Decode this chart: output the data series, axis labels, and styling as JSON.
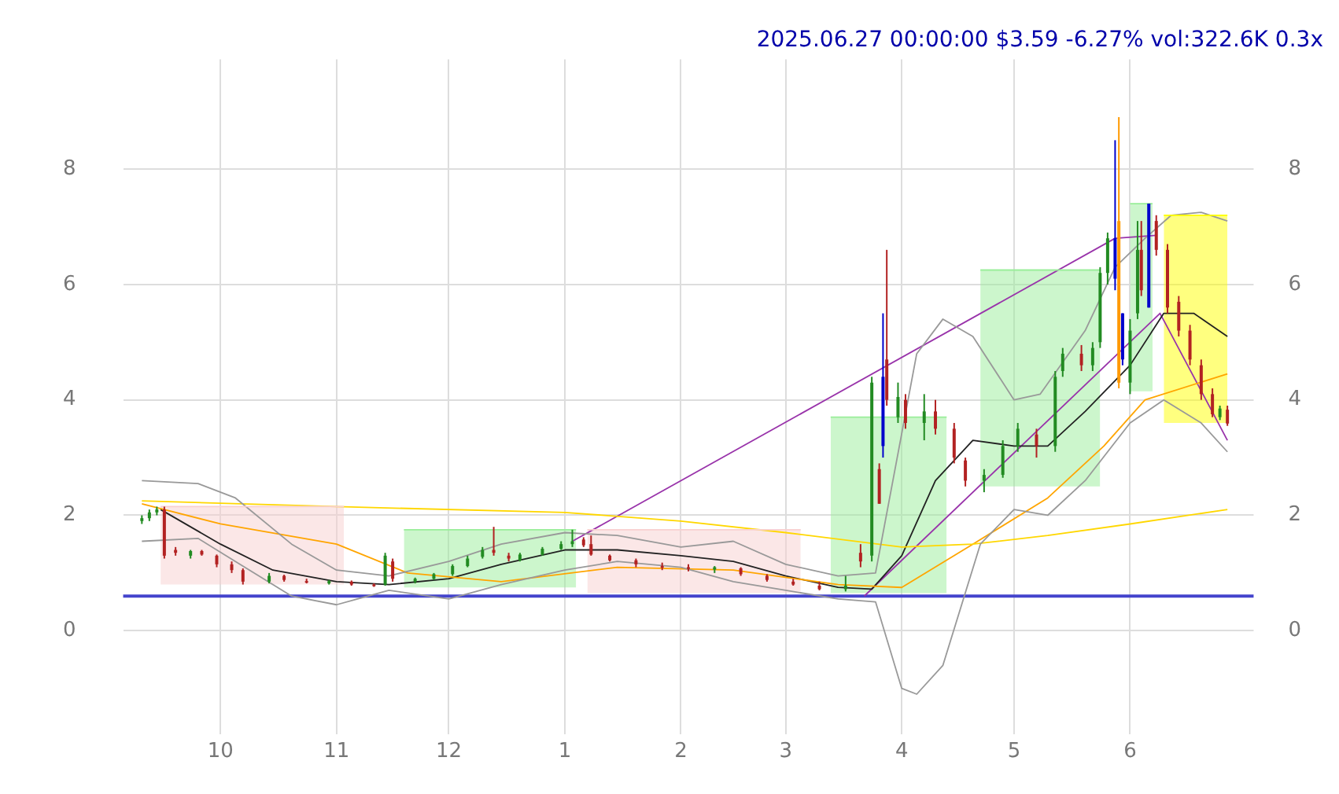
{
  "chart_data": {
    "type": "candlestick",
    "title": "2025.06.27 00:00:00 $3.59 -6.27% vol:322.6K 0.3x",
    "x": [
      "2024-09-10",
      "2024-09-12",
      "2024-09-14",
      "2024-09-16",
      "2024-09-19",
      "2024-09-23",
      "2024-09-26",
      "2024-09-30",
      "2024-10-04",
      "2024-10-07",
      "2024-10-14",
      "2024-10-18",
      "2024-10-24",
      "2024-10-30",
      "2024-11-05",
      "2024-11-11",
      "2024-11-14",
      "2024-11-16",
      "2024-11-22",
      "2024-11-27",
      "2024-12-02",
      "2024-12-06",
      "2024-12-10",
      "2024-12-13",
      "2024-12-17",
      "2024-12-20",
      "2024-12-26",
      "2024-12-31",
      "2025-01-03",
      "2025-01-06",
      "2025-01-08",
      "2025-01-13",
      "2025-01-20",
      "2025-01-27",
      "2025-02-03",
      "2025-02-10",
      "2025-02-17",
      "2025-02-24",
      "2025-03-03",
      "2025-03-10",
      "2025-03-17",
      "2025-03-21",
      "2025-03-24",
      "2025-03-26",
      "2025-03-27",
      "2025-03-28",
      "2025-03-31",
      "2025-04-02",
      "2025-04-07",
      "2025-04-10",
      "2025-04-15",
      "2025-04-18",
      "2025-04-23",
      "2025-04-28",
      "2025-05-02",
      "2025-05-07",
      "2025-05-12",
      "2025-05-14",
      "2025-05-19",
      "2025-05-22",
      "2025-05-24",
      "2025-05-26",
      "2025-05-28",
      "2025-05-29",
      "2025-05-30",
      "2025-06-01",
      "2025-06-03",
      "2025-06-04",
      "2025-06-06",
      "2025-06-08",
      "2025-06-11",
      "2025-06-14",
      "2025-06-17",
      "2025-06-20",
      "2025-06-23",
      "2025-06-25",
      "2025-06-27"
    ],
    "ohlc": [
      [
        1.9,
        2.0,
        1.85,
        1.95
      ],
      [
        1.95,
        2.1,
        1.9,
        2.05
      ],
      [
        2.05,
        2.15,
        2.0,
        2.1
      ],
      [
        2.1,
        2.15,
        1.25,
        1.3
      ],
      [
        1.4,
        1.45,
        1.3,
        1.35
      ],
      [
        1.3,
        1.4,
        1.25,
        1.38
      ],
      [
        1.38,
        1.4,
        1.3,
        1.32
      ],
      [
        1.3,
        1.32,
        1.1,
        1.15
      ],
      [
        1.15,
        1.2,
        1.0,
        1.05
      ],
      [
        1.05,
        1.08,
        0.8,
        0.85
      ],
      [
        0.85,
        1.0,
        0.82,
        0.95
      ],
      [
        0.95,
        0.97,
        0.85,
        0.88
      ],
      [
        0.86,
        0.9,
        0.82,
        0.85
      ],
      [
        0.82,
        0.88,
        0.8,
        0.86
      ],
      [
        0.85,
        0.87,
        0.78,
        0.8
      ],
      [
        0.8,
        0.82,
        0.76,
        0.78
      ],
      [
        0.8,
        1.35,
        0.78,
        1.3
      ],
      [
        1.2,
        1.25,
        0.85,
        0.9
      ],
      [
        0.85,
        0.92,
        0.82,
        0.9
      ],
      [
        0.9,
        1.0,
        0.88,
        0.98
      ],
      [
        0.98,
        1.15,
        0.95,
        1.12
      ],
      [
        1.12,
        1.3,
        1.1,
        1.25
      ],
      [
        1.28,
        1.45,
        1.25,
        1.4
      ],
      [
        1.4,
        1.8,
        1.3,
        1.35
      ],
      [
        1.3,
        1.35,
        1.2,
        1.25
      ],
      [
        1.22,
        1.35,
        1.2,
        1.32
      ],
      [
        1.32,
        1.45,
        1.3,
        1.42
      ],
      [
        1.42,
        1.55,
        1.4,
        1.5
      ],
      [
        1.5,
        1.75,
        1.45,
        1.55
      ],
      [
        1.58,
        1.62,
        1.45,
        1.48
      ],
      [
        1.5,
        1.65,
        1.3,
        1.32
      ],
      [
        1.3,
        1.32,
        1.2,
        1.22
      ],
      [
        1.22,
        1.25,
        1.1,
        1.15
      ],
      [
        1.12,
        1.18,
        1.05,
        1.1
      ],
      [
        1.1,
        1.15,
        1.03,
        1.08
      ],
      [
        1.06,
        1.12,
        1.0,
        1.1
      ],
      [
        1.08,
        1.1,
        0.95,
        0.98
      ],
      [
        0.95,
        0.98,
        0.85,
        0.88
      ],
      [
        0.85,
        0.9,
        0.78,
        0.8
      ],
      [
        0.78,
        0.85,
        0.7,
        0.72
      ],
      [
        0.72,
        0.95,
        0.68,
        0.78
      ],
      [
        1.35,
        1.5,
        1.1,
        1.2
      ],
      [
        1.3,
        4.4,
        1.2,
        4.3
      ],
      [
        2.8,
        2.9,
        2.2,
        2.2
      ],
      [
        3.2,
        5.5,
        3.0,
        4.4
      ],
      [
        4.7,
        6.6,
        3.9,
        4.0
      ],
      [
        3.7,
        4.3,
        3.6,
        4.05
      ],
      [
        4.0,
        4.1,
        3.5,
        3.6
      ],
      [
        3.6,
        4.1,
        3.3,
        3.8
      ],
      [
        3.8,
        4.0,
        3.4,
        3.5
      ],
      [
        3.5,
        3.6,
        2.9,
        3.0
      ],
      [
        2.95,
        3.0,
        2.5,
        2.6
      ],
      [
        2.6,
        2.8,
        2.4,
        2.7
      ],
      [
        2.7,
        3.3,
        2.65,
        3.2
      ],
      [
        3.2,
        3.6,
        3.1,
        3.5
      ],
      [
        3.4,
        3.5,
        3.0,
        3.2
      ],
      [
        3.2,
        4.5,
        3.1,
        4.4
      ],
      [
        4.5,
        4.9,
        4.4,
        4.8
      ],
      [
        4.8,
        4.95,
        4.5,
        4.6
      ],
      [
        4.6,
        5.0,
        4.5,
        4.9
      ],
      [
        5.0,
        6.3,
        4.9,
        6.2
      ],
      [
        6.2,
        6.9,
        6.0,
        6.8
      ],
      [
        6.8,
        8.5,
        5.9,
        6.1
      ],
      [
        7.1,
        8.9,
        4.2,
        4.3
      ],
      [
        5.5,
        5.5,
        4.6,
        4.7
      ],
      [
        4.3,
        5.4,
        4.1,
        5.2
      ],
      [
        5.5,
        7.1,
        5.4,
        6.6
      ],
      [
        6.6,
        7.1,
        5.8,
        5.9
      ],
      [
        7.4,
        7.4,
        5.6,
        5.6
      ],
      [
        7.1,
        7.2,
        6.5,
        6.6
      ],
      [
        6.6,
        6.7,
        5.5,
        5.6
      ],
      [
        5.7,
        5.8,
        5.1,
        5.2
      ],
      [
        5.2,
        5.3,
        4.6,
        4.7
      ],
      [
        4.6,
        4.7,
        4.0,
        4.1
      ],
      [
        4.1,
        4.2,
        3.7,
        3.75
      ],
      [
        3.7,
        3.9,
        3.65,
        3.85
      ],
      [
        3.83,
        3.9,
        3.55,
        3.59
      ]
    ],
    "colors": [
      "#228b22",
      "#228b22",
      "#228b22",
      "#b22222",
      "#b22222",
      "#228b22",
      "#b22222",
      "#b22222",
      "#b22222",
      "#b22222",
      "#228b22",
      "#b22222",
      "#b22222",
      "#228b22",
      "#b22222",
      "#b22222",
      "#228b22",
      "#b22222",
      "#228b22",
      "#228b22",
      "#228b22",
      "#228b22",
      "#228b22",
      "#b22222",
      "#b22222",
      "#228b22",
      "#228b22",
      "#228b22",
      "#228b22",
      "#b22222",
      "#b22222",
      "#b22222",
      "#b22222",
      "#b22222",
      "#b22222",
      "#228b22",
      "#b22222",
      "#b22222",
      "#b22222",
      "#b22222",
      "#228b22",
      "#b22222",
      "#228b22",
      "#b22222",
      "#0000cc",
      "#b22222",
      "#228b22",
      "#b22222",
      "#228b22",
      "#b22222",
      "#b22222",
      "#b22222",
      "#228b22",
      "#228b22",
      "#228b22",
      "#b22222",
      "#228b22",
      "#228b22",
      "#b22222",
      "#228b22",
      "#228b22",
      "#228b22",
      "#0000cc",
      "#ff9900",
      "#0000cc",
      "#228b22",
      "#228b22",
      "#b22222",
      "#0000cc",
      "#b22222",
      "#b22222",
      "#b22222",
      "#b22222",
      "#b22222",
      "#b22222",
      "#228b22",
      "#b22222"
    ],
    "series": [
      {
        "type": "line",
        "color": "#f8d0d0",
        "x": [
          "2024-09-15",
          "2024-11-03"
        ],
        "values": [
          2.15,
          2.15
        ],
        "lower": [
          0.8,
          0.8
        ],
        "upper": [
          2.15,
          2.15
        ]
      },
      {
        "type": "line",
        "color": "#99ee99",
        "x": [
          "2024-11-19",
          "2025-01-04"
        ],
        "values": [
          1.75,
          1.75
        ],
        "lower": [
          0.75,
          0.75
        ],
        "upper": [
          1.75,
          1.75
        ]
      },
      {
        "type": "line",
        "color": "#f8d0d0",
        "x": [
          "2025-01-07",
          "2025-03-05"
        ],
        "values": [
          1.75,
          1.75
        ],
        "lower": [
          0.65,
          0.65
        ],
        "upper": [
          1.75,
          1.75
        ]
      },
      {
        "type": "line",
        "color": "#99ee99",
        "x": [
          "2025-03-13",
          "2025-04-13"
        ],
        "values": [
          3.7,
          3.7
        ],
        "lower": [
          0.65,
          0.65
        ],
        "upper": [
          3.7,
          3.7
        ]
      },
      {
        "type": "line",
        "color": "#99ee99",
        "x": [
          "2025-04-22",
          "2025-05-24"
        ],
        "values": [
          6.25,
          6.25
        ],
        "lower": [
          2.5,
          2.5
        ],
        "upper": [
          6.25,
          6.25
        ]
      },
      {
        "type": "line",
        "color": "#99ee99",
        "x": [
          "2025-06-01",
          "2025-06-07"
        ],
        "values": [
          7.4,
          7.4
        ],
        "lower": [
          4.15,
          4.15
        ],
        "upper": [
          7.4,
          7.4
        ]
      },
      {
        "type": "line",
        "color": "#ffff00",
        "x": [
          "2025-06-10",
          "2025-06-27"
        ],
        "values": [
          7.2,
          7.2
        ],
        "lower": [
          3.6,
          3.6
        ],
        "upper": [
          7.2,
          7.2
        ]
      },
      {
        "type": "line",
        "color": "#999999",
        "x": [
          "2024-09-10",
          "2024-09-25",
          "2024-10-05",
          "2024-10-20",
          "2024-11-01",
          "2024-11-15",
          "2024-12-01",
          "2024-12-15",
          "2025-01-01",
          "2025-01-15",
          "2025-02-01",
          "2025-02-15",
          "2025-03-01",
          "2025-03-15",
          "2025-03-25",
          "2025-04-05",
          "2025-04-12",
          "2025-04-20",
          "2025-05-01",
          "2025-05-08",
          "2025-05-20",
          "2025-05-28",
          "2025-06-05",
          "2025-06-12",
          "2025-06-20",
          "2025-06-27"
        ],
        "values": [
          2.6,
          2.55,
          2.3,
          1.5,
          1.05,
          0.95,
          1.2,
          1.5,
          1.7,
          1.65,
          1.45,
          1.55,
          1.15,
          0.95,
          1.0,
          4.8,
          5.4,
          5.1,
          4.0,
          4.1,
          5.2,
          6.3,
          6.8,
          7.2,
          7.25,
          7.1
        ]
      },
      {
        "type": "line",
        "color": "#999999",
        "x": [
          "2024-09-10",
          "2024-09-25",
          "2024-10-05",
          "2024-10-20",
          "2024-11-01",
          "2024-11-15",
          "2024-12-01",
          "2024-12-15",
          "2025-01-01",
          "2025-01-15",
          "2025-02-01",
          "2025-02-15",
          "2025-03-01",
          "2025-03-15",
          "2025-03-25",
          "2025-04-01",
          "2025-04-05",
          "2025-04-12",
          "2025-04-22",
          "2025-05-01",
          "2025-05-10",
          "2025-05-20",
          "2025-06-01",
          "2025-06-10",
          "2025-06-20",
          "2025-06-27"
        ],
        "values": [
          1.55,
          1.6,
          1.2,
          0.6,
          0.45,
          0.7,
          0.55,
          0.8,
          1.05,
          1.2,
          1.1,
          0.85,
          0.7,
          0.55,
          0.5,
          -1.0,
          -1.1,
          -0.6,
          1.5,
          2.1,
          2.0,
          2.6,
          3.6,
          4.0,
          3.6,
          3.1
        ]
      },
      {
        "type": "line",
        "color": "#ffd700",
        "x": [
          "2024-09-10",
          "2024-11-01",
          "2025-01-01",
          "2025-02-01",
          "2025-03-01",
          "2025-04-01",
          "2025-04-20",
          "2025-05-10",
          "2025-06-01",
          "2025-06-27"
        ],
        "values": [
          2.25,
          2.15,
          2.05,
          1.9,
          1.7,
          1.45,
          1.5,
          1.65,
          1.85,
          2.1
        ]
      },
      {
        "type": "line",
        "color": "#ffa500",
        "x": [
          "2024-09-10",
          "2024-10-01",
          "2024-11-01",
          "2024-11-20",
          "2024-12-15",
          "2025-01-15",
          "2025-02-15",
          "2025-03-15",
          "2025-04-01",
          "2025-04-20",
          "2025-05-10",
          "2025-05-25",
          "2025-06-05",
          "2025-06-27"
        ],
        "values": [
          2.2,
          1.85,
          1.5,
          1.0,
          0.85,
          1.1,
          1.05,
          0.8,
          0.75,
          1.5,
          2.3,
          3.2,
          4.0,
          4.45
        ]
      },
      {
        "type": "line",
        "color": "#222222",
        "x": [
          "2024-09-15",
          "2024-10-01",
          "2024-10-15",
          "2024-11-01",
          "2024-11-15",
          "2024-12-01",
          "2024-12-15",
          "2025-01-01",
          "2025-01-15",
          "2025-02-01",
          "2025-02-15",
          "2025-03-01",
          "2025-03-15",
          "2025-03-24",
          "2025-04-01",
          "2025-04-10",
          "2025-04-20",
          "2025-05-01",
          "2025-05-10",
          "2025-05-20",
          "2025-06-01",
          "2025-06-10",
          "2025-06-18",
          "2025-06-27"
        ],
        "values": [
          2.1,
          1.5,
          1.05,
          0.85,
          0.8,
          0.9,
          1.15,
          1.4,
          1.4,
          1.3,
          1.2,
          0.95,
          0.75,
          0.72,
          1.3,
          2.6,
          3.3,
          3.2,
          3.2,
          3.8,
          4.6,
          5.5,
          5.5,
          5.1
        ]
      },
      {
        "type": "line",
        "color": "#9933aa",
        "x": [
          "2025-01-03",
          "2025-05-28",
          "2025-06-08"
        ],
        "values": [
          1.55,
          6.8,
          6.85
        ]
      },
      {
        "type": "line",
        "color": "#9933aa",
        "x": [
          "2025-03-22",
          "2025-06-09",
          "2025-06-27"
        ],
        "values": [
          0.6,
          5.5,
          3.3
        ]
      }
    ],
    "ref_lines": [
      {
        "axis": "y",
        "value": 0.6,
        "color": "#4444cc"
      }
    ],
    "xlim": [
      "2024-09-05",
      "2025-07-04"
    ],
    "xticks": [
      {
        "value": "2024-10-01",
        "label": "10"
      },
      {
        "value": "2024-11-01",
        "label": "11"
      },
      {
        "value": "2024-12-01",
        "label": "12"
      },
      {
        "value": "2025-01-01",
        "label": "1"
      },
      {
        "value": "2025-02-01",
        "label": "2"
      },
      {
        "value": "2025-03-01",
        "label": "3"
      },
      {
        "value": "2025-04-01",
        "label": "4"
      },
      {
        "value": "2025-05-01",
        "label": "5"
      },
      {
        "value": "2025-06-01",
        "label": "6"
      }
    ],
    "ylim": [
      -1.8,
      9.9
    ],
    "yticks": [
      0,
      2,
      4,
      6,
      8
    ],
    "y2lim": [
      -1.8,
      9.9
    ],
    "y2ticks": [
      0,
      2,
      4,
      6,
      8
    ],
    "grid": true,
    "legend": false
  }
}
